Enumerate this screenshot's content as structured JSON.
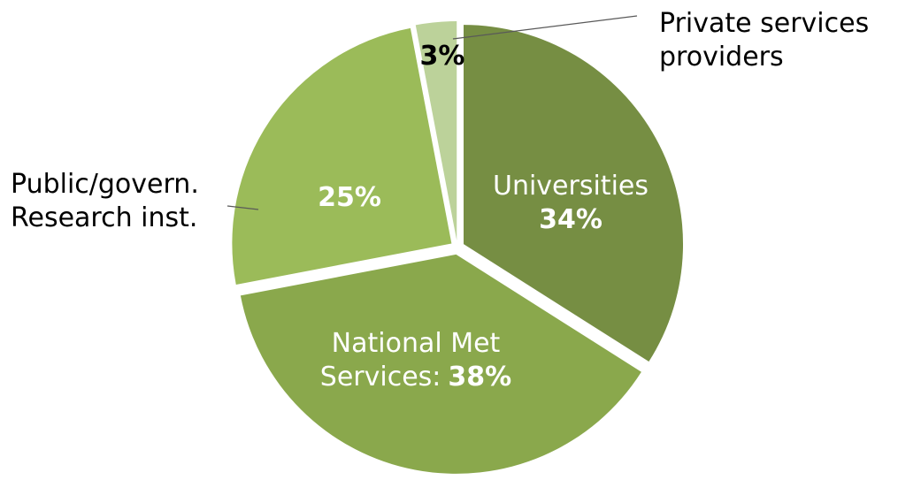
{
  "chart_data": {
    "type": "pie",
    "categories": [
      "Universities",
      "National Met Services:",
      "Public/govern. Research inst.",
      "Private services providers"
    ],
    "values": [
      34,
      38,
      25,
      3
    ],
    "value_labels": [
      "34%",
      "38%",
      "25%",
      "3%"
    ],
    "colors": [
      "#768e43",
      "#8aa84c",
      "#9bbb59",
      "#bcd29a"
    ]
  }
}
